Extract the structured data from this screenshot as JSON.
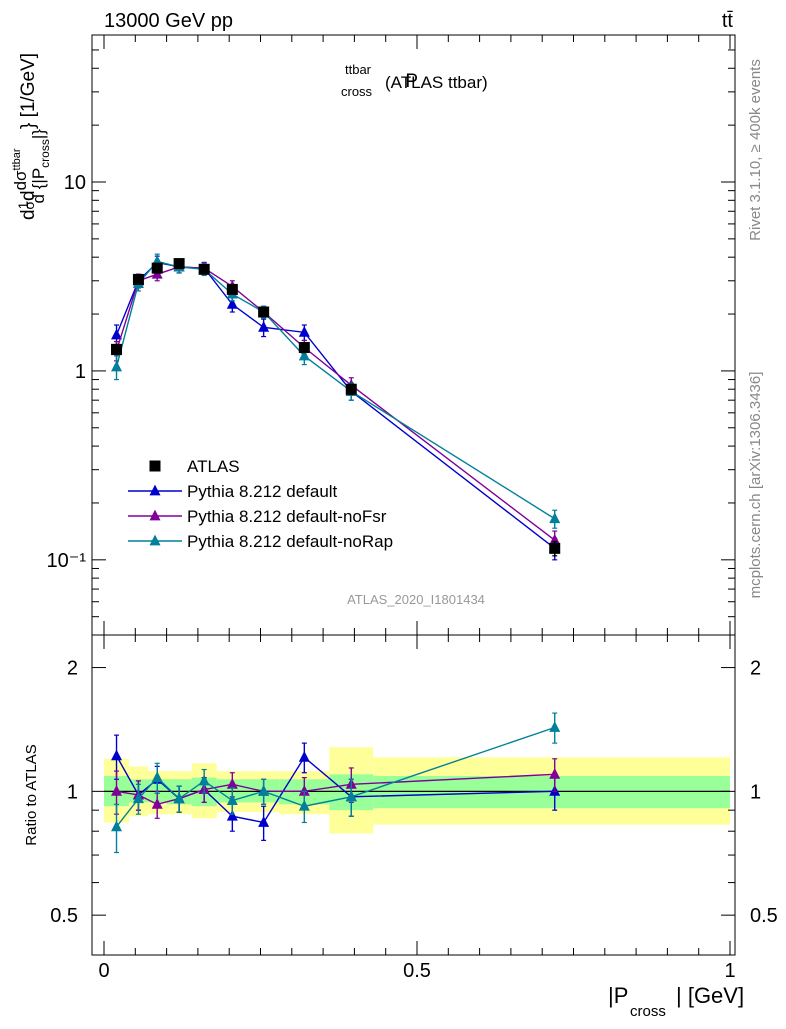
{
  "header": {
    "energy_label": "13000 GeV pp",
    "process_label": "tt̄"
  },
  "side_labels": {
    "version": "Rivet 3.1.10, ≥ 400k events",
    "site": "mcplots.cern.ch [arXiv:1306.3436]"
  },
  "chart_data": [
    {
      "type": "line",
      "title_main": "P",
      "title_sup": "ttbar",
      "title_sub": "cross",
      "title_suffix": "(ATLAS ttbar)",
      "analysis_tag": "ATLAS_2020_I1801434",
      "ylabel": "1/σ dσ^{ttbar}/d{|P_cross|} [1/GeV]",
      "yscale": "log",
      "ylim": [
        0.04,
        60
      ],
      "xlim": [
        -0.02,
        1.0
      ],
      "y_tick_labels": [
        "10⁻¹",
        "1",
        "10"
      ],
      "legend_position": "lower-left",
      "x": [
        0.02,
        0.055,
        0.085,
        0.12,
        0.16,
        0.205,
        0.255,
        0.32,
        0.395,
        0.72
      ],
      "series": [
        {
          "name": "ATLAS",
          "color": "#000000",
          "marker": "square",
          "values": [
            1.3,
            3.05,
            3.5,
            3.7,
            3.45,
            2.7,
            2.05,
            1.33,
            0.8,
            0.115
          ],
          "err": [
            0.08,
            0.15,
            0.15,
            0.18,
            0.15,
            0.12,
            0.1,
            0.08,
            0.05,
            0.01
          ]
        },
        {
          "name": "Pythia 8.212 default",
          "color": "#0000cc",
          "marker": "triangle",
          "values": [
            1.55,
            3.0,
            3.75,
            3.55,
            3.5,
            2.25,
            1.7,
            1.6,
            0.78,
            0.115
          ],
          "err": [
            0.2,
            0.25,
            0.3,
            0.25,
            0.25,
            0.2,
            0.18,
            0.15,
            0.08,
            0.015
          ]
        },
        {
          "name": "Pythia 8.212 default-noFsr",
          "color": "#800099",
          "marker": "triangle",
          "values": [
            1.28,
            3.0,
            3.25,
            3.55,
            3.5,
            2.8,
            2.05,
            1.33,
            0.84,
            0.127
          ],
          "err": [
            0.15,
            0.25,
            0.25,
            0.25,
            0.25,
            0.2,
            0.15,
            0.12,
            0.08,
            0.015
          ]
        },
        {
          "name": "Pythia 8.212 default-noRap",
          "color": "#00809a",
          "marker": "triangle",
          "values": [
            1.05,
            2.9,
            3.8,
            3.55,
            3.45,
            2.55,
            2.05,
            1.2,
            0.78,
            0.165
          ],
          "err": [
            0.15,
            0.25,
            0.35,
            0.25,
            0.25,
            0.2,
            0.15,
            0.12,
            0.08,
            0.018
          ]
        }
      ]
    },
    {
      "type": "line",
      "ylabel": "Ratio to ATLAS",
      "yscale": "log",
      "ylim": [
        0.4,
        2.4
      ],
      "xlim": [
        -0.02,
        1.0
      ],
      "xlabel_main": "|P",
      "xlabel_sub": "cross",
      "xlabel_suffix": "| [GeV]",
      "x_tick_labels": [
        "0",
        "0.5",
        "1"
      ],
      "y_tick_labels": [
        "0.5",
        "1",
        "2"
      ],
      "bands": [
        {
          "x0": 0.0,
          "x1": 0.04,
          "inner": [
            0.92,
            1.09
          ],
          "outer": [
            0.84,
            1.2
          ]
        },
        {
          "x0": 0.04,
          "x1": 0.07,
          "inner": [
            0.94,
            1.07
          ],
          "outer": [
            0.87,
            1.15
          ]
        },
        {
          "x0": 0.07,
          "x1": 0.1,
          "inner": [
            0.94,
            1.07
          ],
          "outer": [
            0.88,
            1.12
          ]
        },
        {
          "x0": 0.1,
          "x1": 0.14,
          "inner": [
            0.93,
            1.07
          ],
          "outer": [
            0.88,
            1.12
          ]
        },
        {
          "x0": 0.14,
          "x1": 0.18,
          "inner": [
            0.92,
            1.08
          ],
          "outer": [
            0.86,
            1.17
          ]
        },
        {
          "x0": 0.18,
          "x1": 0.23,
          "inner": [
            0.94,
            1.07
          ],
          "outer": [
            0.89,
            1.12
          ]
        },
        {
          "x0": 0.23,
          "x1": 0.28,
          "inner": [
            0.94,
            1.07
          ],
          "outer": [
            0.89,
            1.12
          ]
        },
        {
          "x0": 0.28,
          "x1": 0.36,
          "inner": [
            0.93,
            1.07
          ],
          "outer": [
            0.88,
            1.12
          ]
        },
        {
          "x0": 0.36,
          "x1": 0.43,
          "inner": [
            0.9,
            1.1
          ],
          "outer": [
            0.79,
            1.28
          ]
        },
        {
          "x0": 0.43,
          "x1": 1.0,
          "inner": [
            0.91,
            1.09
          ],
          "outer": [
            0.83,
            1.21
          ]
        }
      ],
      "x": [
        0.02,
        0.055,
        0.085,
        0.12,
        0.16,
        0.205,
        0.255,
        0.32,
        0.395,
        0.72
      ],
      "series": [
        {
          "name": "Pythia 8.212 default",
          "color": "#0000cc",
          "values": [
            1.22,
            0.98,
            1.07,
            0.96,
            1.01,
            0.87,
            0.84,
            1.21,
            0.97,
            1.0
          ],
          "err": [
            0.15,
            0.08,
            0.08,
            0.07,
            0.07,
            0.07,
            0.08,
            0.1,
            0.1,
            0.1
          ]
        },
        {
          "name": "Pythia 8.212 default-noFsr",
          "color": "#800099",
          "values": [
            1.0,
            0.98,
            0.93,
            0.96,
            1.01,
            1.04,
            1.0,
            1.0,
            1.04,
            1.1
          ],
          "err": [
            0.12,
            0.08,
            0.07,
            0.07,
            0.07,
            0.07,
            0.07,
            0.08,
            0.1,
            0.1
          ]
        },
        {
          "name": "Pythia 8.212 default-noRap",
          "color": "#00809a",
          "values": [
            0.82,
            0.96,
            1.08,
            0.96,
            1.06,
            0.95,
            1.0,
            0.92,
            0.97,
            1.43
          ],
          "err": [
            0.11,
            0.08,
            0.09,
            0.07,
            0.07,
            0.07,
            0.07,
            0.08,
            0.1,
            0.12
          ]
        }
      ]
    }
  ]
}
